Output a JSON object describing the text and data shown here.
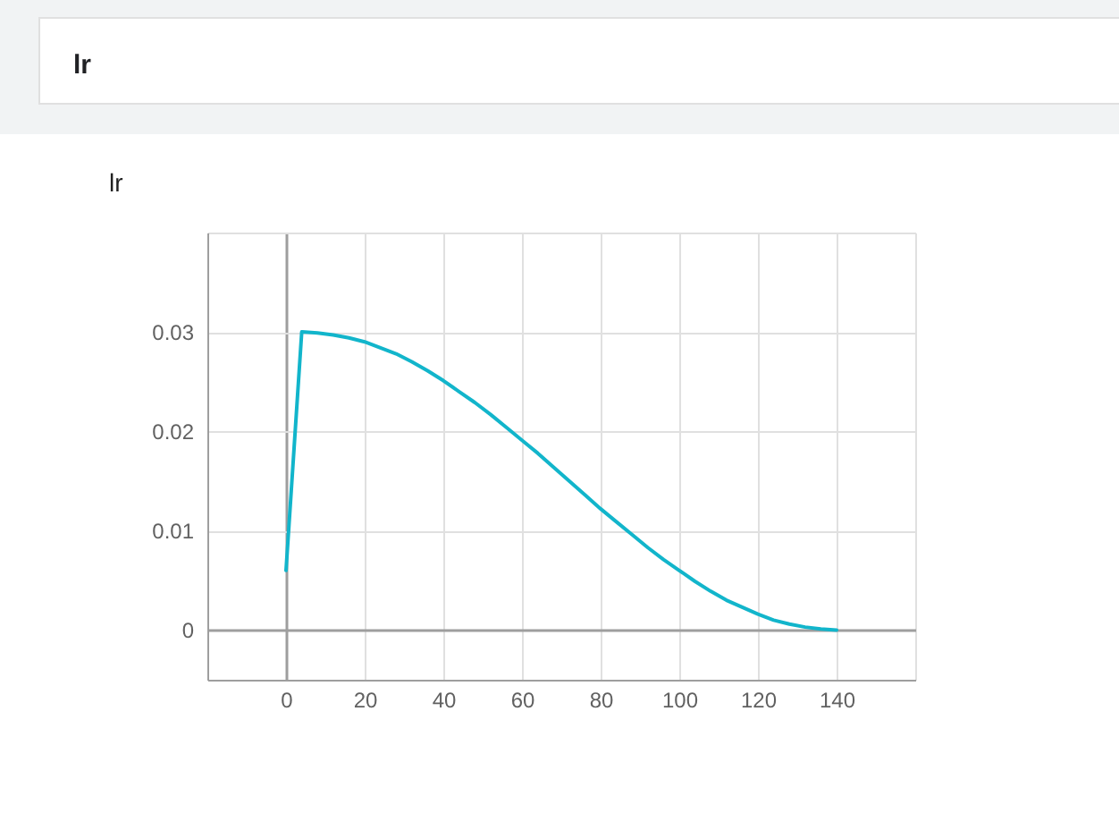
{
  "chart_data": {
    "type": "line",
    "title": "lr",
    "subtitle": "lr",
    "x": [
      0,
      4,
      8,
      12,
      16,
      20,
      24,
      28,
      32,
      36,
      40,
      44,
      48,
      52,
      56,
      60,
      64,
      68,
      72,
      76,
      80,
      84,
      88,
      92,
      96,
      100,
      104,
      108,
      112,
      116,
      120,
      124,
      128,
      132,
      136,
      140
    ],
    "series": [
      {
        "color": "#12b5cb",
        "values": [
          0.006,
          0.03,
          0.0299,
          0.0297,
          0.0294,
          0.029,
          0.0284,
          0.0278,
          0.027,
          0.0261,
          0.0251,
          0.024,
          0.0229,
          0.0217,
          0.0204,
          0.0191,
          0.0178,
          0.0164,
          0.015,
          0.0136,
          0.0122,
          0.0109,
          0.0096,
          0.0083,
          0.0071,
          0.006,
          0.0049,
          0.0039,
          0.003,
          0.0023,
          0.0016,
          0.001,
          0.0006,
          0.0003,
          0.0001,
          0
        ]
      }
    ],
    "xlim": [
      -20,
      160
    ],
    "xticks": [
      {
        "value": -20,
        "label": null
      },
      0,
      20,
      40,
      60,
      80,
      100,
      120,
      140,
      {
        "value": 160,
        "label": null
      }
    ],
    "ylim": [
      -0.005,
      0.04
    ],
    "yticks": [
      0,
      0.01,
      0.02,
      0.03,
      {
        "value": 0.04,
        "label": null
      }
    ],
    "grid": true
  }
}
